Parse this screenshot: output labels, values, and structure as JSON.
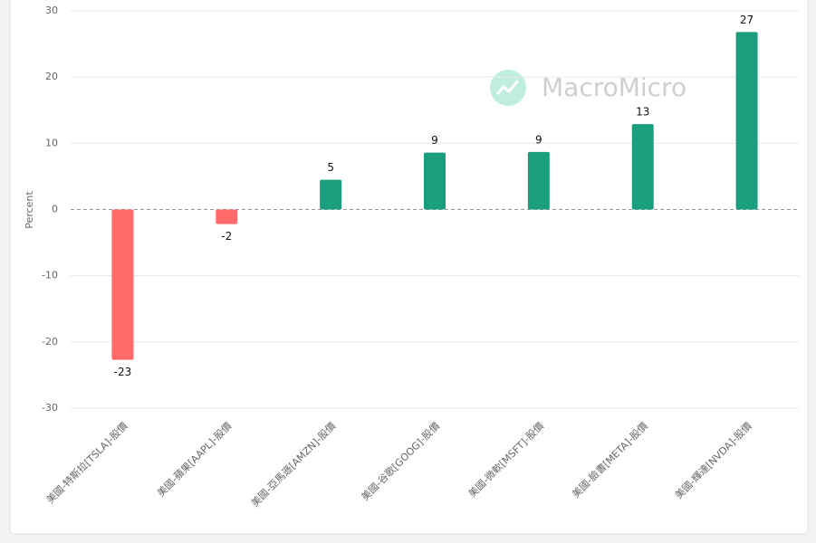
{
  "chart_data": {
    "type": "bar",
    "y_label": "Percent",
    "watermark": "MacroMicro",
    "categories": [
      "美國-特斯拉[TSLA]-股價",
      "美國-蘋果[AAPL]-股價",
      "美國-亞馬遜[AMZN]-股價",
      "美國-谷歌[GOOG]-股價",
      "美國-微軟[MSFT]-股價",
      "美國-臉書[META]-股價",
      "美國-輝達[NVDA]-股價"
    ],
    "values": [
      -22.7,
      -2.2,
      4.5,
      8.6,
      8.7,
      12.9,
      26.8
    ],
    "value_labels": [
      "-23",
      "-2",
      "5",
      "9",
      "9",
      "13",
      "27"
    ],
    "positive_color": "#1a9e7e",
    "negative_color": "#ff6b6b",
    "ylim": [
      -30,
      30
    ],
    "yticks": [
      30,
      20,
      10,
      0,
      -10,
      -20,
      -30
    ],
    "grid": true
  }
}
